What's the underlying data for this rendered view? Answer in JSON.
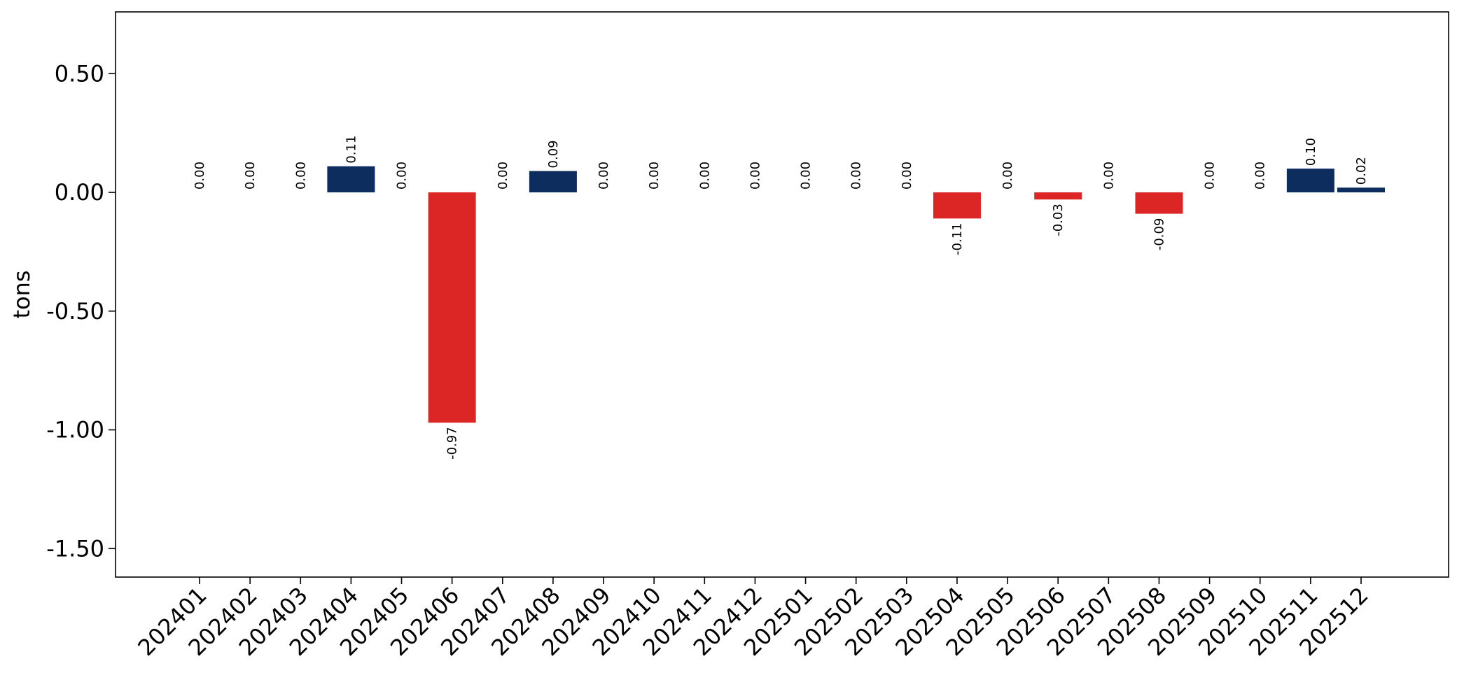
{
  "chart_data": {
    "type": "bar",
    "ylabel": "tons",
    "ylim": [
      -1.62,
      0.76
    ],
    "yticks": [
      0.5,
      0.0,
      -0.5,
      -1.0,
      -1.5
    ],
    "ytick_labels": [
      "0.50",
      "0.00",
      "-0.50",
      "-1.00",
      "-1.50"
    ],
    "categories": [
      "202401",
      "202402",
      "202403",
      "202404",
      "202405",
      "202406",
      "202407",
      "202408",
      "202409",
      "202410",
      "202411",
      "202412",
      "202501",
      "202502",
      "202503",
      "202504",
      "202505",
      "202506",
      "202507",
      "202508",
      "202509",
      "202510",
      "202511",
      "202512"
    ],
    "values": [
      0.0,
      0.0,
      0.0,
      0.11,
      0.0,
      -0.97,
      0.0,
      0.09,
      0.0,
      0.0,
      0.0,
      0.0,
      0.0,
      0.0,
      0.0,
      -0.11,
      0.0,
      -0.03,
      0.0,
      -0.09,
      0.0,
      0.0,
      0.1,
      0.02
    ],
    "value_labels": [
      "0.00",
      "0.00",
      "0.00",
      "0.11",
      "0.00",
      "-0.97",
      "0.00",
      "0.09",
      "0.00",
      "0.00",
      "0.00",
      "0.00",
      "0.00",
      "0.00",
      "0.00",
      "-0.11",
      "0.00",
      "-0.03",
      "0.00",
      "-0.09",
      "0.00",
      "0.00",
      "0.10",
      "0.02"
    ],
    "colors": {
      "positive": "#0d2d5e",
      "negative": "#dc2626"
    },
    "grid": false,
    "legend": "none"
  }
}
